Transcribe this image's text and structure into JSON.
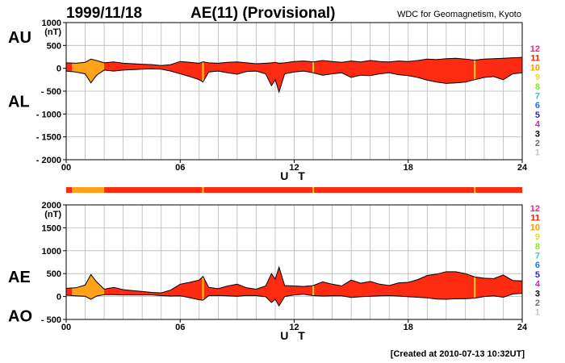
{
  "header": {
    "date": "1999/11/18",
    "title": "AE(11) (Provisional)",
    "source": "WDC for Geomagnetism, Kyoto",
    "created": "[Created at 2010-07-13 10:32UT]"
  },
  "colors": {
    "fill_main": "#ff2a12",
    "fill_low": "#ffa21a",
    "outline": "#000000",
    "grid": "#b9b9b9"
  },
  "station_legend": [
    {
      "label": "12",
      "color": "#ff1f7a"
    },
    {
      "label": "11",
      "color": "#e8200a"
    },
    {
      "label": "10",
      "color": "#ff9a00"
    },
    {
      "label": "9",
      "color": "#e2e21a"
    },
    {
      "label": "8",
      "color": "#8cea1c"
    },
    {
      "label": "7",
      "color": "#1fd2d2"
    },
    {
      "label": "6",
      "color": "#1f6dff"
    },
    {
      "label": "5",
      "color": "#2d1fcf"
    },
    {
      "label": "4",
      "color": "#cf1fcf"
    },
    {
      "label": "3",
      "color": "#000000"
    },
    {
      "label": "2",
      "color": "#6e6e6e"
    },
    {
      "label": "1",
      "color": "#c8c8c8"
    }
  ],
  "station_bar": {
    "segments": [
      {
        "from": 0,
        "to": 0.3,
        "level": 11
      },
      {
        "from": 0.3,
        "to": 2.0,
        "level": 10
      },
      {
        "from": 2.0,
        "to": 24,
        "level": 11
      }
    ],
    "marks_hours": [
      7.2,
      13.0,
      21.5
    ]
  },
  "chart_data": [
    {
      "type": "area",
      "name": "AU/AL",
      "label_upper": "AU",
      "label_lower": "AL",
      "xlabel": "U T",
      "ylabel_unit": "(nT)",
      "xlim": [
        0,
        24
      ],
      "ylim": [
        -2000,
        1000
      ],
      "xticks": [
        0,
        6,
        12,
        18,
        24
      ],
      "xtick_labels": [
        "00",
        "06",
        "12",
        "18",
        "24"
      ],
      "yticks": [
        1000,
        500,
        0,
        -500,
        -1000,
        -1500,
        -2000
      ],
      "ytick_labels": [
        "1000",
        "500",
        "0",
        "- 500",
        "- 1000",
        "- 1500",
        "- 2000"
      ],
      "low_station_interval": [
        0.3,
        2.0
      ],
      "marker_hours": [
        7.2,
        13.0,
        21.5
      ],
      "x": [
        0,
        0.5,
        1.0,
        1.3,
        1.6,
        2.0,
        2.5,
        3.0,
        3.5,
        4.0,
        4.5,
        5.0,
        5.5,
        6.0,
        6.5,
        7.0,
        7.2,
        7.5,
        8.0,
        8.5,
        9.0,
        9.5,
        10.0,
        10.5,
        10.8,
        11.0,
        11.2,
        11.5,
        12.0,
        12.5,
        13.0,
        13.5,
        14.0,
        14.5,
        15.0,
        15.5,
        16.0,
        16.5,
        17.0,
        17.5,
        18.0,
        18.5,
        19.0,
        19.5,
        20.0,
        20.5,
        21.0,
        21.5,
        22.0,
        22.5,
        23.0,
        23.5,
        24.0
      ],
      "series": [
        {
          "name": "AU",
          "values": [
            120,
            110,
            130,
            200,
            170,
            120,
            140,
            110,
            100,
            90,
            80,
            60,
            80,
            150,
            130,
            110,
            140,
            120,
            110,
            130,
            140,
            120,
            100,
            110,
            120,
            130,
            110,
            120,
            150,
            160,
            140,
            170,
            150,
            130,
            160,
            140,
            170,
            150,
            140,
            160,
            150,
            170,
            200,
            190,
            210,
            220,
            200,
            180,
            200,
            210,
            220,
            230,
            240
          ]
        },
        {
          "name": "AL",
          "values": [
            -60,
            -80,
            -120,
            -320,
            -150,
            -40,
            -60,
            -40,
            -30,
            -20,
            -10,
            -20,
            -60,
            -120,
            -180,
            -250,
            -300,
            -80,
            -60,
            -100,
            -130,
            -70,
            -60,
            -120,
            -380,
            -250,
            -520,
            -120,
            -80,
            -60,
            -100,
            -150,
            -120,
            -100,
            -200,
            -150,
            -160,
            -120,
            -100,
            -140,
            -160,
            -200,
            -260,
            -300,
            -330,
            -320,
            -300,
            -250,
            -200,
            -180,
            -250,
            -120,
            -100
          ]
        }
      ]
    },
    {
      "type": "area",
      "name": "AE/AO",
      "label_upper": "AE",
      "label_lower": "AO",
      "xlabel": "U T",
      "ylabel_unit": "(nT)",
      "xlim": [
        0,
        24
      ],
      "ylim": [
        -500,
        2000
      ],
      "xticks": [
        0,
        6,
        12,
        18,
        24
      ],
      "xtick_labels": [
        "00",
        "06",
        "12",
        "18",
        "24"
      ],
      "yticks": [
        2000,
        1500,
        1000,
        500,
        0,
        -500
      ],
      "ytick_labels": [
        "2000",
        "1500",
        "1000",
        "500",
        "0",
        "- 500"
      ],
      "low_station_interval": [
        0.3,
        2.0
      ],
      "marker_hours": [
        7.2,
        13.0,
        21.5
      ],
      "x": [
        0,
        0.5,
        1.0,
        1.3,
        1.6,
        2.0,
        2.5,
        3.0,
        3.5,
        4.0,
        4.5,
        5.0,
        5.5,
        6.0,
        6.5,
        7.0,
        7.2,
        7.5,
        8.0,
        8.5,
        9.0,
        9.5,
        10.0,
        10.5,
        10.8,
        11.0,
        11.2,
        11.5,
        12.0,
        12.5,
        13.0,
        13.5,
        14.0,
        14.5,
        15.0,
        15.5,
        16.0,
        16.5,
        17.0,
        17.5,
        18.0,
        18.5,
        19.0,
        19.5,
        20.0,
        20.5,
        21.0,
        21.5,
        22.0,
        22.5,
        23.0,
        23.5,
        24.0
      ],
      "series": [
        {
          "name": "AE",
          "values": [
            180,
            190,
            250,
            480,
            320,
            160,
            200,
            150,
            130,
            110,
            90,
            80,
            140,
            270,
            310,
            360,
            440,
            200,
            170,
            230,
            270,
            190,
            160,
            230,
            500,
            380,
            640,
            240,
            230,
            220,
            240,
            320,
            270,
            230,
            360,
            290,
            330,
            270,
            240,
            300,
            310,
            370,
            460,
            490,
            540,
            540,
            500,
            430,
            400,
            390,
            470,
            350,
            340
          ]
        },
        {
          "name": "AO",
          "values": [
            30,
            15,
            5,
            -60,
            10,
            40,
            40,
            35,
            35,
            35,
            35,
            20,
            10,
            15,
            -25,
            -70,
            -80,
            20,
            25,
            15,
            5,
            25,
            20,
            -5,
            -130,
            -60,
            -205,
            0,
            35,
            50,
            20,
            10,
            15,
            15,
            -20,
            -5,
            5,
            15,
            20,
            10,
            -5,
            -15,
            -30,
            -55,
            -60,
            -50,
            -50,
            -35,
            0,
            15,
            -15,
            55,
            70
          ]
        }
      ]
    }
  ]
}
